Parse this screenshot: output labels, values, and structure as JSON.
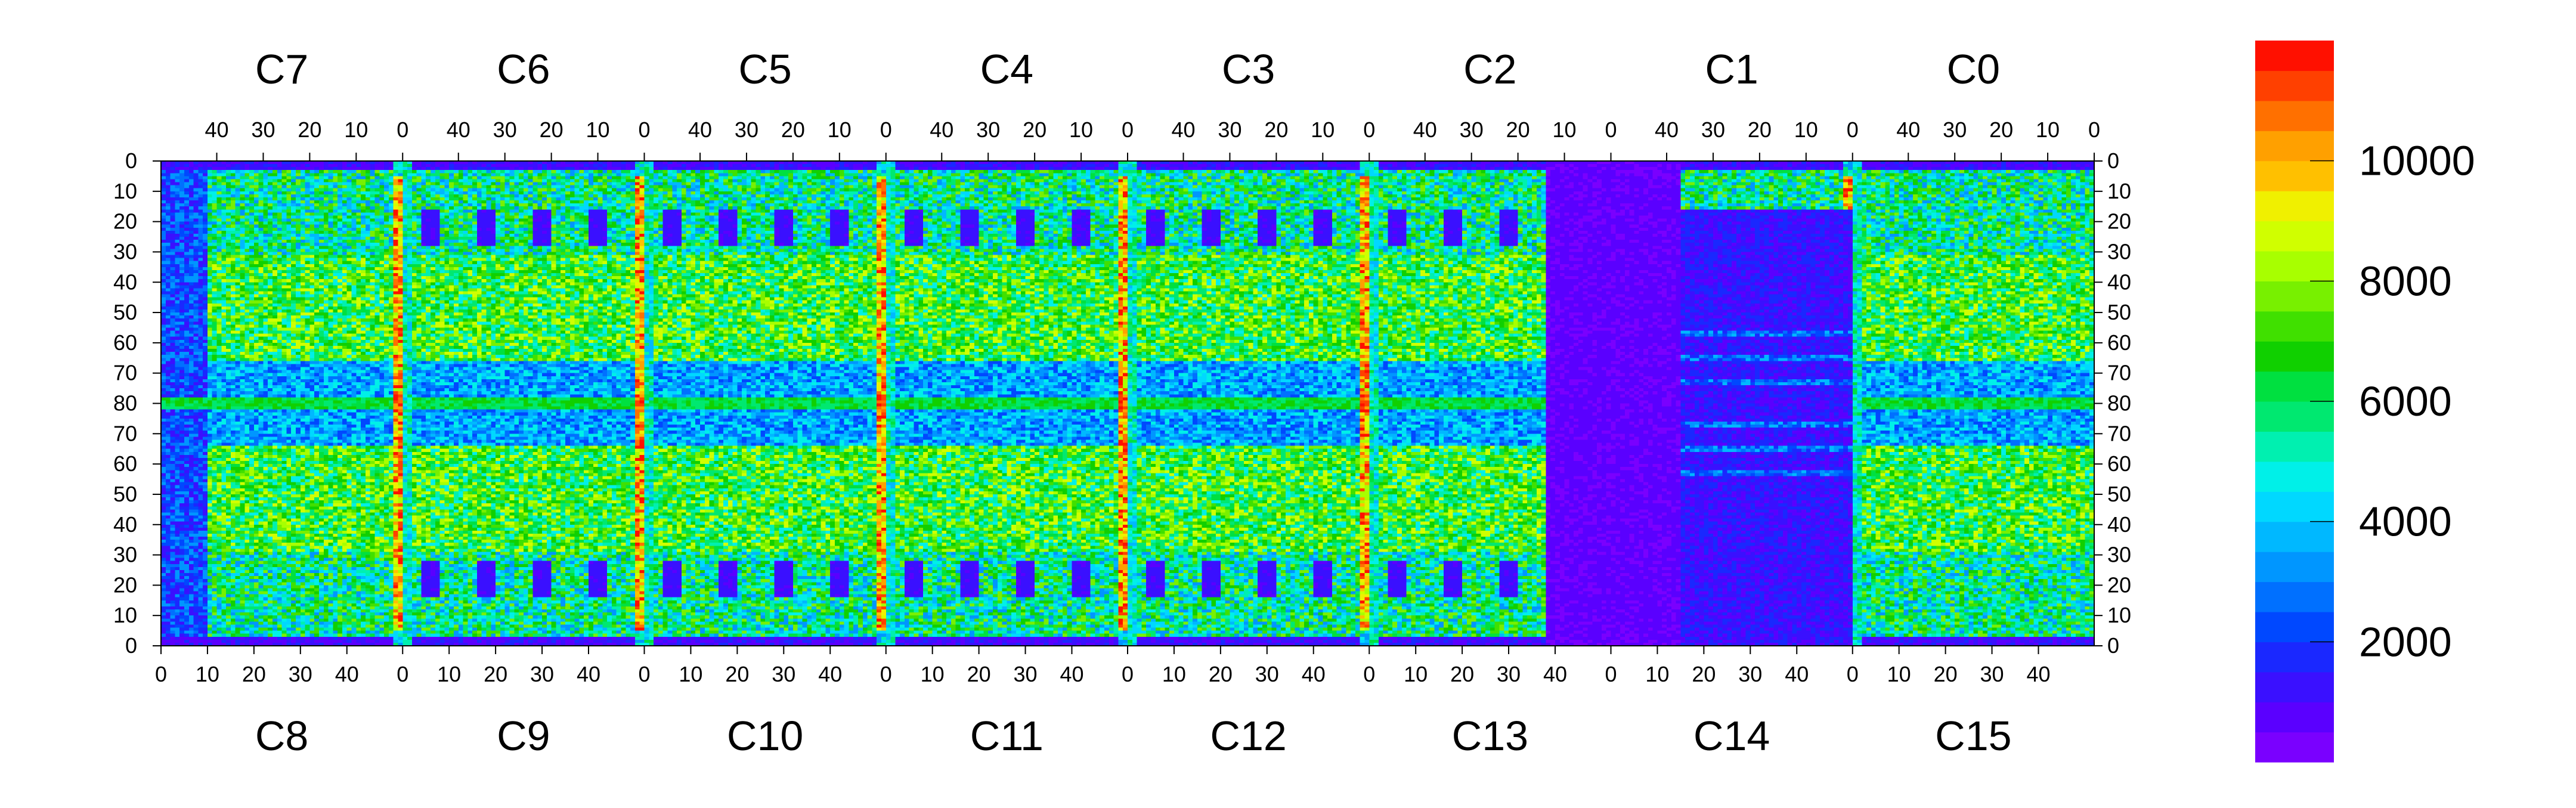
{
  "chart_data": {
    "type": "heatmap",
    "title": "",
    "xlabel": "",
    "ylabel": "",
    "top_chip_labels": [
      "C7",
      "C6",
      "C5",
      "C4",
      "C3",
      "C2",
      "C1",
      "C0"
    ],
    "bottom_chip_labels": [
      "C8",
      "C9",
      "C10",
      "C11",
      "C12",
      "C13",
      "C14",
      "C15"
    ],
    "top_x_ticks": [
      "40",
      "30",
      "20",
      "10",
      "0"
    ],
    "bottom_x_ticks": [
      "0",
      "10",
      "20",
      "30",
      "40"
    ],
    "y_ticks": [
      "0",
      "10",
      "20",
      "30",
      "40",
      "50",
      "60",
      "70",
      "80",
      "70",
      "60",
      "50",
      "40",
      "30",
      "20",
      "10",
      "0"
    ],
    "columns_per_chip": 52,
    "rows_per_half": 80,
    "colorbar": {
      "ticks": [
        "2000",
        "4000",
        "6000",
        "8000",
        "10000"
      ],
      "range": [
        0,
        12000
      ],
      "colors": [
        "#7a00ff",
        "#5a00ff",
        "#3a10ff",
        "#1a28ff",
        "#0048ff",
        "#0070ff",
        "#0096ff",
        "#00b8ff",
        "#00d8ff",
        "#00f0e8",
        "#00f0b0",
        "#00e870",
        "#00e040",
        "#10d000",
        "#40e000",
        "#78f000",
        "#a8ff00",
        "#d0ff00",
        "#f0f000",
        "#ffc000",
        "#ffa000",
        "#ff7000",
        "#ff4000",
        "#ff1000"
      ]
    },
    "cell_value_range": [
      0,
      12000
    ],
    "scale": "linear"
  }
}
